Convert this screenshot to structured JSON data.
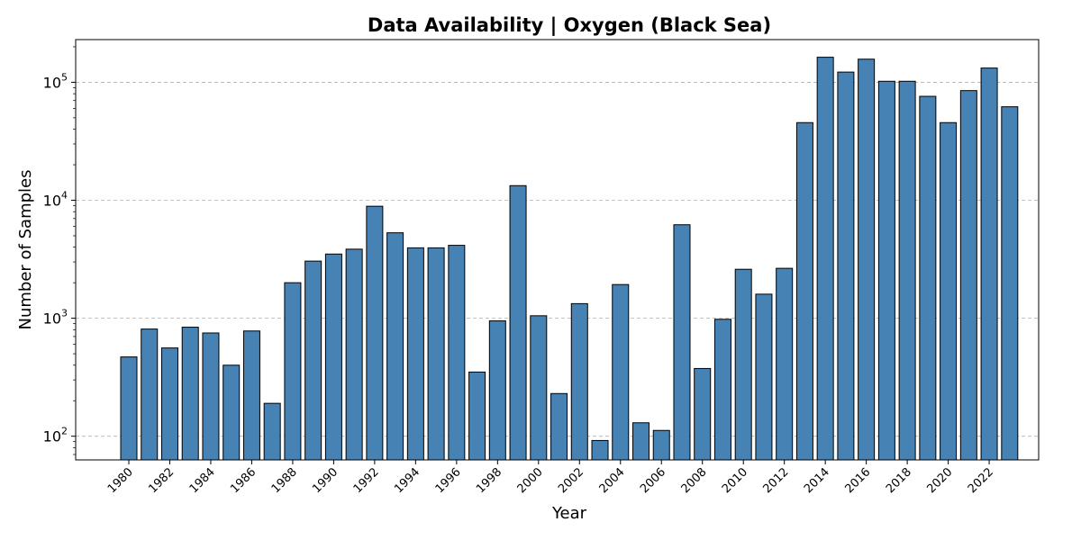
{
  "chart_data": {
    "type": "bar",
    "title": "Data Availability | Oxygen (Black Sea)",
    "xlabel": "Year",
    "ylabel": "Number of Samples",
    "yscale": "log",
    "ylim": [
      63,
      230000
    ],
    "grid": "y-major dashed",
    "bar_color": "#4682b4",
    "edge_color": "#000000",
    "categories": [
      1980,
      1981,
      1982,
      1983,
      1984,
      1985,
      1986,
      1987,
      1988,
      1989,
      1990,
      1991,
      1992,
      1993,
      1994,
      1995,
      1996,
      1997,
      1998,
      1999,
      2000,
      2001,
      2002,
      2003,
      2004,
      2005,
      2006,
      2007,
      2008,
      2009,
      2010,
      2011,
      2012,
      2013,
      2014,
      2015,
      2016,
      2017,
      2018,
      2019,
      2020,
      2021,
      2022,
      2023
    ],
    "values": [
      470,
      810,
      560,
      840,
      750,
      400,
      780,
      190,
      2000,
      3050,
      3500,
      3850,
      8900,
      5300,
      3950,
      3950,
      4150,
      350,
      950,
      13300,
      1050,
      230,
      1330,
      92,
      1930,
      130,
      112,
      6200,
      375,
      980,
      2600,
      1600,
      2650,
      45500,
      163000,
      122000,
      157000,
      102000,
      102000,
      76000,
      45500,
      85000,
      132000,
      62000
    ],
    "xtick_labels": [
      "1980",
      "1982",
      "1984",
      "1986",
      "1988",
      "1990",
      "1992",
      "1994",
      "1996",
      "1998",
      "2000",
      "2002",
      "2004",
      "2006",
      "2008",
      "2010",
      "2012",
      "2014",
      "2016",
      "2018",
      "2020",
      "2022"
    ],
    "ytick_labels": [
      {
        "base": "10",
        "exp": "2",
        "value": 100
      },
      {
        "base": "10",
        "exp": "3",
        "value": 1000
      },
      {
        "base": "10",
        "exp": "4",
        "value": 10000
      },
      {
        "base": "10",
        "exp": "5",
        "value": 100000
      }
    ]
  }
}
